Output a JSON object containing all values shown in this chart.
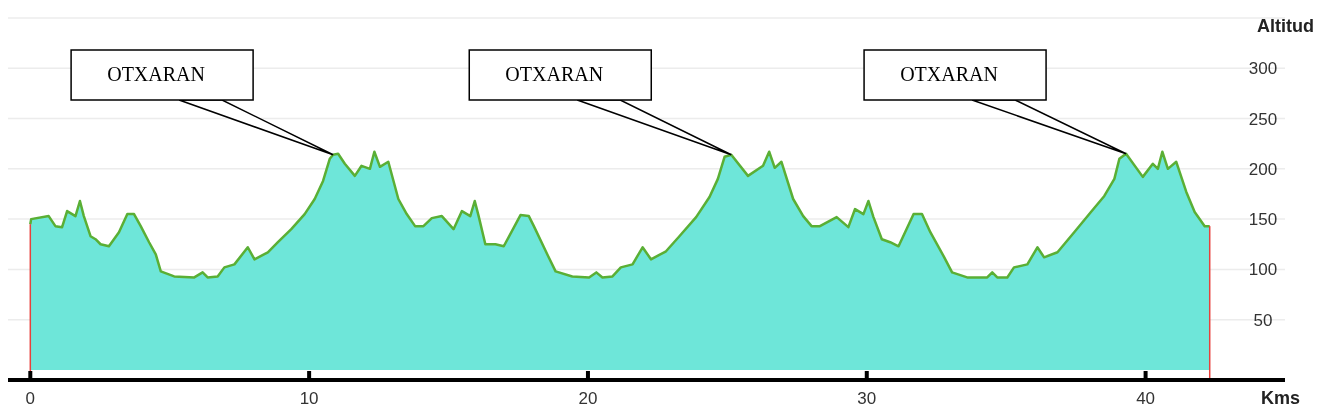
{
  "chart_data": {
    "type": "area",
    "xlabel": "Kms",
    "ylabel": "Altitud",
    "xlim": [
      -0.8,
      45
    ],
    "xticks": [
      0,
      10,
      20,
      30,
      40
    ],
    "ylim": [
      -10,
      350
    ],
    "yticks": [
      50,
      100,
      150,
      200,
      250,
      300,
      {
        "value": 350,
        "label": null
      }
    ],
    "grid": "y",
    "legend": false,
    "series": [
      {
        "color": "#6ee6d9",
        "x": [
          0,
          0.03,
          0.66,
          0.9,
          1.14,
          1.32,
          1.62,
          1.78,
          1.92,
          2.16,
          2.34,
          2.52,
          2.82,
          3.18,
          3.48,
          3.72,
          3.96,
          4.26,
          4.5,
          4.68,
          5.16,
          5.88,
          6.18,
          6.36,
          6.72,
          6.96,
          7.32,
          7.8,
          8.04,
          8.52,
          8.88,
          9.36,
          9.84,
          10.2,
          10.5,
          10.74,
          10.86,
          11.04,
          11.28,
          11.64,
          11.88,
          12.18,
          12.34,
          12.54,
          12.84,
          13.2,
          13.5,
          13.8,
          14.1,
          14.4,
          14.76,
          15.18,
          15.48,
          15.78,
          15.94,
          16.08,
          16.32,
          16.68,
          16.98,
          17.58,
          17.88,
          18.06,
          18.54,
          18.84,
          19.44,
          20.04,
          20.3,
          20.52,
          20.88,
          21.18,
          21.6,
          21.96,
          22.26,
          22.8,
          23.28,
          23.88,
          24.36,
          24.66,
          24.9,
          25.14,
          25.74,
          26.28,
          26.5,
          26.7,
          26.94,
          27.36,
          27.72,
          28.02,
          28.32,
          28.92,
          29.34,
          29.58,
          29.88,
          30.06,
          30.24,
          30.54,
          30.84,
          31.14,
          31.68,
          31.98,
          32.28,
          32.76,
          33.06,
          33.6,
          34.32,
          34.5,
          34.68,
          35.04,
          35.28,
          35.76,
          36.12,
          36.36,
          36.84,
          37.44,
          38.04,
          38.52,
          38.88,
          39.06,
          39.3,
          39.9,
          40.26,
          40.44,
          40.6,
          40.8,
          41.1,
          41.46,
          41.76,
          42.12,
          42.3
        ],
        "values": [
          145,
          150,
          153,
          143,
          142,
          158,
          153,
          168,
          153,
          133,
          130,
          125,
          123,
          137,
          155,
          155,
          143,
          127,
          115,
          98,
          93,
          92,
          97,
          92,
          93,
          102,
          105,
          122,
          110,
          117,
          127,
          140,
          155,
          170,
          188,
          210,
          214,
          215,
          205,
          193,
          203,
          200,
          217,
          202,
          207,
          170,
          155,
          143,
          143,
          151,
          153,
          140,
          158,
          153,
          168,
          153,
          125,
          125,
          123,
          154,
          153,
          143,
          115,
          98,
          93,
          92,
          97,
          92,
          93,
          102,
          105,
          122,
          110,
          118,
          133,
          152,
          172,
          190,
          212,
          214,
          193,
          203,
          217,
          201,
          207,
          170,
          153,
          143,
          143,
          152,
          142,
          160,
          155,
          168,
          152,
          130,
          127,
          123,
          155,
          155,
          137,
          113,
          97,
          92,
          92,
          97,
          92,
          92,
          102,
          105,
          122,
          112,
          117,
          137,
          157,
          173,
          190,
          210,
          215,
          192,
          205,
          200,
          217,
          200,
          207,
          177,
          157,
          143,
          143
        ]
      }
    ],
    "ref_lines": [
      {
        "axis": "x",
        "value": 0,
        "color": "#e8413c"
      },
      {
        "axis": "x",
        "value": 42.3,
        "color": "#e8413c"
      }
    ],
    "annotations": [
      {
        "text": "OTXARAN",
        "x": 10.86,
        "y": 214
      },
      {
        "text": "OTXARAN",
        "x": 25.14,
        "y": 214
      },
      {
        "text": "OTXARAN",
        "x": 39.3,
        "y": 215
      }
    ]
  }
}
